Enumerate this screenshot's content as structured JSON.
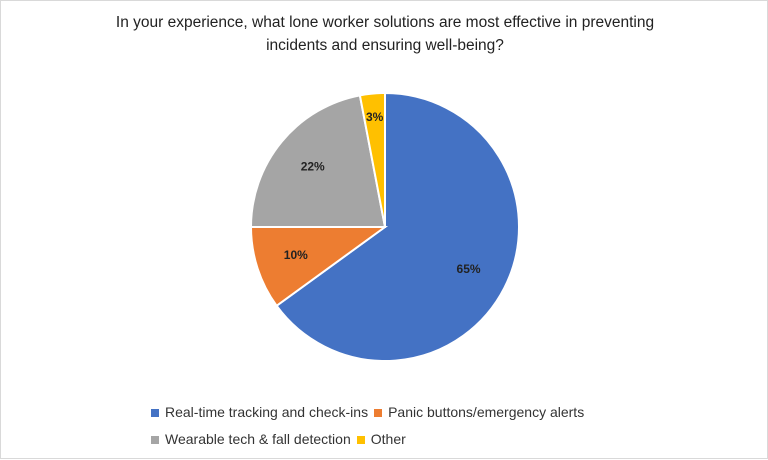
{
  "chart_data": {
    "type": "pie",
    "title_lines": [
      "In your experience, what lone worker solutions are most effective in preventing",
      "incidents and ensuring well-being?"
    ],
    "categories": [
      "Real-time tracking and check-ins",
      "Panic buttons/emergency alerts",
      "Wearable tech & fall detection",
      "Other"
    ],
    "values": [
      65,
      10,
      22,
      3
    ],
    "labels": [
      "65%",
      "10%",
      "22%",
      "3%"
    ],
    "colors": [
      "#4472C4",
      "#ED7D31",
      "#A5A5A5",
      "#FFC000"
    ],
    "legend_position": "bottom"
  }
}
